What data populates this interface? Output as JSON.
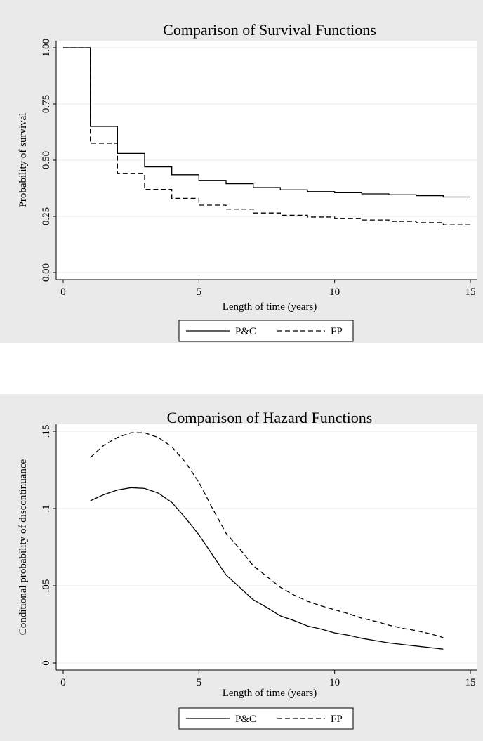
{
  "chart_data": [
    {
      "type": "line",
      "step": true,
      "title": "Comparison of Survival Functions",
      "xlabel": "Length of time (years)",
      "ylabel": "Probability of survival",
      "xlim": [
        0,
        15
      ],
      "ylim": [
        0,
        1
      ],
      "xticks": [
        0,
        5,
        10,
        15
      ],
      "xtick_labels": [
        "0",
        "5",
        "10",
        "15"
      ],
      "yticks": [
        0,
        0.25,
        0.5,
        0.75,
        1
      ],
      "ytick_labels": [
        "0.00",
        "0.25",
        "0.50",
        "0.75",
        "1.00"
      ],
      "grid": true,
      "legend_position": "bottom",
      "x": [
        0,
        1,
        2,
        3,
        4,
        5,
        6,
        7,
        8,
        9,
        10,
        11,
        12,
        13,
        14,
        15
      ],
      "series": [
        {
          "name": "P&C",
          "style": "solid",
          "values": [
            1.0,
            0.65,
            0.53,
            0.47,
            0.435,
            0.41,
            0.395,
            0.378,
            0.368,
            0.36,
            0.355,
            0.35,
            0.346,
            0.342,
            0.336,
            0.336
          ]
        },
        {
          "name": "FP",
          "style": "dashed",
          "values": [
            1.0,
            0.575,
            0.44,
            0.37,
            0.33,
            0.3,
            0.282,
            0.265,
            0.255,
            0.247,
            0.24,
            0.234,
            0.228,
            0.222,
            0.212,
            0.212
          ]
        }
      ]
    },
    {
      "type": "line",
      "title": "Comparison of Hazard Functions",
      "xlabel": "Length of time (years)",
      "ylabel": "Conditional probability of discontinuance",
      "xlim": [
        0,
        15
      ],
      "ylim": [
        0,
        0.15
      ],
      "xticks": [
        0,
        5,
        10,
        15
      ],
      "xtick_labels": [
        "0",
        "5",
        "10",
        "15"
      ],
      "yticks": [
        0,
        0.05,
        0.1,
        0.15
      ],
      "ytick_labels": [
        "0",
        ".05",
        ".1",
        ".15"
      ],
      "grid": true,
      "legend_position": "bottom",
      "x": [
        1,
        1.5,
        2,
        2.5,
        3,
        3.5,
        4,
        4.5,
        5,
        5.5,
        6,
        6.5,
        7,
        7.5,
        8,
        8.5,
        9,
        9.5,
        10,
        10.5,
        11,
        11.5,
        12,
        12.5,
        13,
        13.5,
        14
      ],
      "series": [
        {
          "name": "P&C",
          "style": "solid",
          "values": [
            0.105,
            0.109,
            0.112,
            0.1135,
            0.113,
            0.11,
            0.104,
            0.094,
            0.083,
            0.07,
            0.057,
            0.049,
            0.041,
            0.036,
            0.0305,
            0.0275,
            0.024,
            0.022,
            0.0195,
            0.018,
            0.016,
            0.0145,
            0.013,
            0.012,
            0.011,
            0.01,
            0.009
          ]
        },
        {
          "name": "FP",
          "style": "dashed",
          "values": [
            0.133,
            0.141,
            0.146,
            0.149,
            0.149,
            0.146,
            0.14,
            0.13,
            0.117,
            0.1,
            0.084,
            0.074,
            0.063,
            0.056,
            0.049,
            0.044,
            0.04,
            0.037,
            0.0345,
            0.032,
            0.029,
            0.027,
            0.0245,
            0.0225,
            0.021,
            0.019,
            0.0165
          ]
        }
      ]
    }
  ]
}
